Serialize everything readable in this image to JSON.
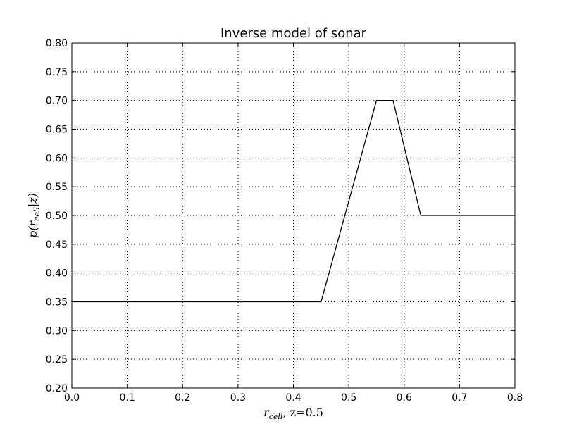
{
  "chart_data": {
    "type": "line",
    "title": "Inverse model of sonar",
    "xlabel": "",
    "ylabel": "",
    "xlabel_parts": {
      "var": "r",
      "sub": "cell",
      "rest": ", z=0.5"
    },
    "ylabel_parts": {
      "prefix": "p(r",
      "sub": "cell",
      "suffix": "|z)"
    },
    "xlim": [
      0.0,
      0.8
    ],
    "ylim": [
      0.2,
      0.8
    ],
    "xticks": [
      0.0,
      0.1,
      0.2,
      0.3,
      0.4,
      0.5,
      0.6,
      0.7,
      0.8
    ],
    "yticks": [
      0.2,
      0.25,
      0.3,
      0.35,
      0.4,
      0.45,
      0.5,
      0.55,
      0.6,
      0.65,
      0.7,
      0.75,
      0.8
    ],
    "xtick_labels": [
      "0.0",
      "0.1",
      "0.2",
      "0.3",
      "0.4",
      "0.5",
      "0.6",
      "0.7",
      "0.8"
    ],
    "ytick_labels": [
      "0.20",
      "0.25",
      "0.30",
      "0.35",
      "0.40",
      "0.45",
      "0.50",
      "0.55",
      "0.60",
      "0.65",
      "0.70",
      "0.75",
      "0.80"
    ],
    "grid": true,
    "series": [
      {
        "x": [
          0.0,
          0.45,
          0.55,
          0.58,
          0.63,
          0.8
        ],
        "y": [
          0.35,
          0.35,
          0.7,
          0.7,
          0.5,
          0.5
        ],
        "color": "#000000"
      }
    ]
  }
}
